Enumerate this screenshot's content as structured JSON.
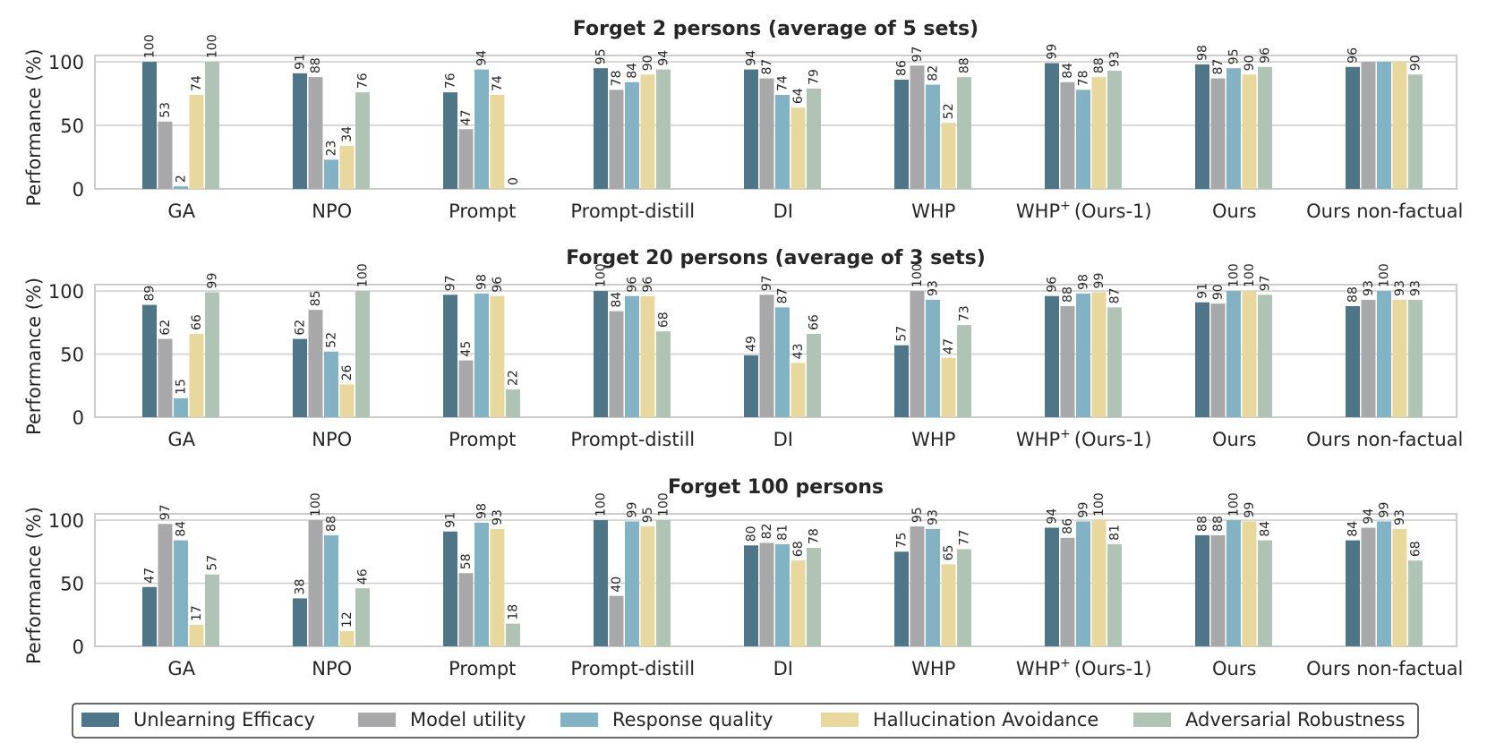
{
  "chart_data": [
    {
      "type": "bar",
      "title": "Forget 2 persons (average of 5 sets)",
      "ylabel": "Performance (%)",
      "ylim": [
        0,
        105
      ],
      "yticks": [
        0,
        50,
        100
      ],
      "categories": [
        "GA",
        "NPO",
        "Prompt",
        "Prompt-distill",
        "DI",
        "WHP",
        "WHP",
        "Ours",
        "Ours non-factual"
      ],
      "series": [
        {
          "name": "Unlearning Efficacy",
          "values": [
            100,
            91,
            76,
            95,
            94,
            86,
            99,
            98,
            96
          ]
        },
        {
          "name": "Model utility",
          "values": [
            53,
            88,
            47,
            78,
            87,
            97,
            84,
            87,
            100
          ]
        },
        {
          "name": "Response quality",
          "values": [
            2,
            23,
            94,
            84,
            74,
            82,
            78,
            95,
            100
          ]
        },
        {
          "name": "Hallucination Avoidance",
          "values": [
            74,
            34,
            74,
            90,
            64,
            52,
            88,
            90,
            100
          ]
        },
        {
          "name": "Adversarial Robustness",
          "values": [
            100,
            76,
            0,
            94,
            79,
            88,
            93,
            96,
            90
          ]
        }
      ],
      "labels": [
        [
          100,
          91,
          76,
          95,
          94,
          86,
          99,
          98,
          96
        ],
        [
          53,
          88,
          47,
          78,
          87,
          97,
          84,
          87,
          null
        ],
        [
          2,
          23,
          94,
          84,
          74,
          82,
          78,
          95,
          null
        ],
        [
          74,
          34,
          74,
          90,
          64,
          52,
          88,
          90,
          null
        ],
        [
          100,
          76,
          0,
          94,
          79,
          88,
          93,
          96,
          90
        ]
      ]
    },
    {
      "type": "bar",
      "title": "Forget 20 persons (average of 3 sets)",
      "ylabel": "Performance (%)",
      "ylim": [
        0,
        105
      ],
      "yticks": [
        0,
        50,
        100
      ],
      "categories": [
        "GA",
        "NPO",
        "Prompt",
        "Prompt-distill",
        "DI",
        "WHP",
        "WHP",
        "Ours",
        "Ours non-factual"
      ],
      "series": [
        {
          "name": "Unlearning Efficacy",
          "values": [
            89,
            62,
            97,
            100,
            49,
            57,
            96,
            91,
            88
          ]
        },
        {
          "name": "Model utility",
          "values": [
            62,
            85,
            45,
            84,
            97,
            100,
            88,
            90,
            93
          ]
        },
        {
          "name": "Response quality",
          "values": [
            15,
            52,
            98,
            96,
            87,
            93,
            98,
            100,
            100
          ]
        },
        {
          "name": "Hallucination Avoidance",
          "values": [
            66,
            26,
            96,
            96,
            43,
            47,
            99,
            100,
            93
          ]
        },
        {
          "name": "Adversarial Robustness",
          "values": [
            99,
            100,
            22,
            68,
            66,
            73,
            87,
            97,
            93
          ]
        }
      ],
      "labels": [
        [
          89,
          62,
          97,
          100,
          49,
          57,
          96,
          91,
          88
        ],
        [
          62,
          85,
          45,
          84,
          97,
          100,
          88,
          90,
          93
        ],
        [
          15,
          52,
          98,
          96,
          87,
          93,
          98,
          100,
          100
        ],
        [
          66,
          26,
          96,
          96,
          43,
          47,
          99,
          100,
          93
        ],
        [
          99,
          100,
          22,
          68,
          66,
          73,
          87,
          97,
          93
        ]
      ]
    },
    {
      "type": "bar",
      "title": "Forget 100 persons",
      "ylabel": "Performance (%)",
      "ylim": [
        0,
        105
      ],
      "yticks": [
        0,
        50,
        100
      ],
      "categories": [
        "GA",
        "NPO",
        "Prompt",
        "Prompt-distill",
        "DI",
        "WHP",
        "WHP",
        "Ours",
        "Ours non-factual"
      ],
      "series": [
        {
          "name": "Unlearning Efficacy",
          "values": [
            47,
            38,
            91,
            100,
            80,
            75,
            94,
            88,
            84
          ]
        },
        {
          "name": "Model utility",
          "values": [
            97,
            100,
            58,
            40,
            82,
            95,
            86,
            88,
            94
          ]
        },
        {
          "name": "Response quality",
          "values": [
            84,
            88,
            98,
            99,
            81,
            93,
            99,
            100,
            99
          ]
        },
        {
          "name": "Hallucination Avoidance",
          "values": [
            17,
            12,
            93,
            95,
            68,
            65,
            100,
            99,
            93
          ]
        },
        {
          "name": "Adversarial Robustness",
          "values": [
            57,
            46,
            18,
            100,
            78,
            77,
            81,
            84,
            68
          ]
        }
      ],
      "labels": [
        [
          47,
          38,
          91,
          100,
          80,
          75,
          94,
          88,
          84
        ],
        [
          97,
          100,
          58,
          40,
          82,
          95,
          86,
          88,
          94
        ],
        [
          84,
          88,
          98,
          99,
          81,
          93,
          99,
          100,
          99
        ],
        [
          17,
          12,
          93,
          95,
          68,
          65,
          100,
          99,
          93
        ],
        [
          57,
          46,
          18,
          100,
          78,
          77,
          81,
          84,
          68
        ]
      ]
    }
  ],
  "category_suffix": {
    "index": 6,
    "sup": "+",
    "rest": "(Ours-1)"
  },
  "legend": {
    "placement": "bottom",
    "items": [
      {
        "name": "Unlearning Efficacy",
        "color": "#4f7688"
      },
      {
        "name": "Model utility",
        "color": "#a8a8aa"
      },
      {
        "name": "Response quality",
        "color": "#82b2c4"
      },
      {
        "name": "Hallucination Avoidance",
        "color": "#e8d89e"
      },
      {
        "name": "Adversarial Robustness",
        "color": "#b0c4b6"
      }
    ]
  },
  "colors": {
    "grid": "#d0d0d0",
    "spine": "#cccccc",
    "text": "#262626"
  }
}
